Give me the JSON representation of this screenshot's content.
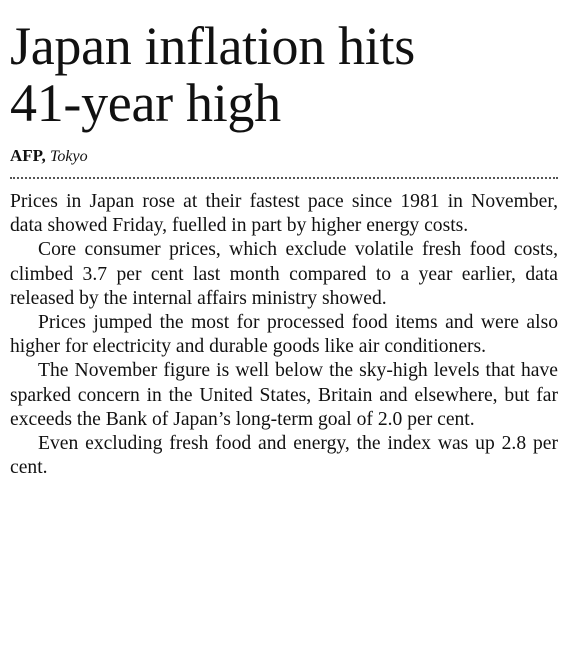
{
  "article": {
    "headline_lines": [
      "Japan inflation hits",
      "41-year high"
    ],
    "byline": {
      "agency": "AFP,",
      "place": "Tokyo"
    },
    "paragraphs": [
      "Prices in Japan rose at their fastest pace since 1981 in November, data showed Friday, fuelled in part by higher energy costs.",
      "Core consumer prices, which exclude volatile fresh food costs, climbed 3.7 per cent last month compared to a year earlier, data released by the internal affairs ministry showed.",
      "Prices jumped the most for processed food items and were also higher for electricity and durable goods like air conditioners.",
      "The November figure is well below the sky-high levels that have sparked concern in the United States, Britain and elsewhere, but far exceeds the Bank of Japan’s long-term goal of 2.0 per cent.",
      "Even excluding fresh food and energy, the index was up 2.8 per cent."
    ]
  }
}
